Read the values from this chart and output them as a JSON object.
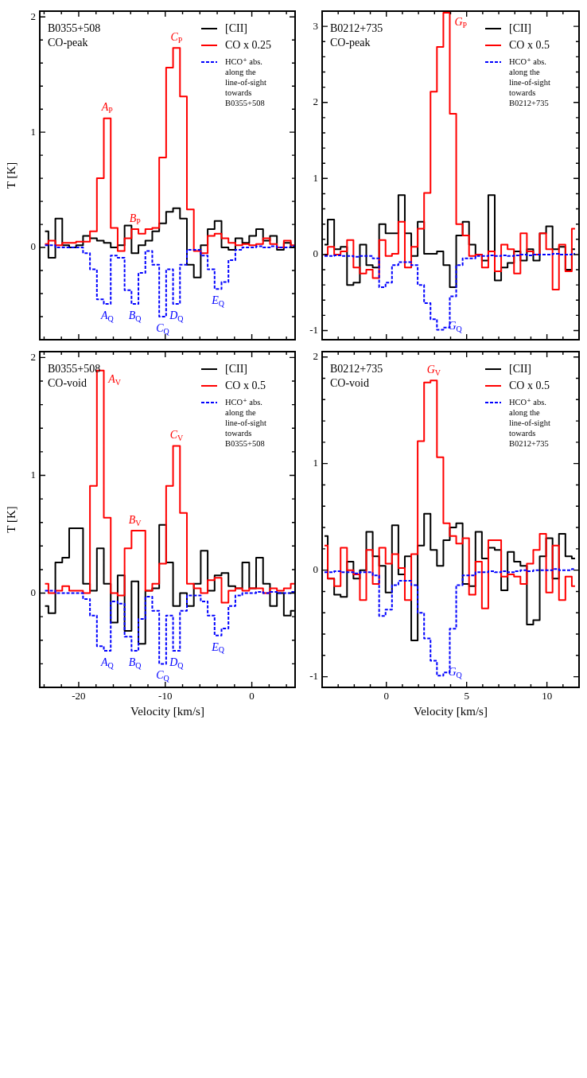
{
  "chart_data": [
    {
      "type": "step",
      "title": "B0355+508",
      "subtitle": "CO-peak",
      "ylabel": "T [K]",
      "tick_labels": "y",
      "legend": "top right",
      "marker": "none",
      "xlim": [
        -24.5,
        5
      ],
      "ylim": [
        -0.8,
        2.05
      ],
      "xticks": [
        {
          "value": -24,
          "label": null
        },
        {
          "value": -22,
          "label": null
        },
        -20,
        {
          "value": -18,
          "label": null
        },
        {
          "value": -16,
          "label": null
        },
        {
          "value": -14,
          "label": null
        },
        {
          "value": -12,
          "label": null
        },
        -10,
        {
          "value": -8,
          "label": null
        },
        {
          "value": -6,
          "label": null
        },
        {
          "value": -4,
          "label": null
        },
        {
          "value": -2,
          "label": null
        },
        0,
        {
          "value": 2,
          "label": null
        },
        {
          "value": 4,
          "label": null
        }
      ],
      "yticks": [
        {
          "value": -0.8,
          "label": null
        },
        {
          "value": -0.6,
          "label": null
        },
        {
          "value": -0.4,
          "label": null
        },
        {
          "value": -0.2,
          "label": null
        },
        0,
        {
          "value": 0.2,
          "label": null
        },
        {
          "value": 0.4,
          "label": null
        },
        {
          "value": 0.6,
          "label": null
        },
        {
          "value": 0.8,
          "label": null
        },
        1,
        {
          "value": 1.2,
          "label": null
        },
        {
          "value": 1.4,
          "label": null
        },
        {
          "value": 1.6,
          "label": null
        },
        {
          "value": 1.8,
          "label": null
        },
        2
      ],
      "x": [
        -23.9,
        -23.1,
        -22.3,
        -21.5,
        -20.7,
        -19.9,
        -19.1,
        -18.3,
        -17.5,
        -16.7,
        -15.9,
        -15.1,
        -14.3,
        -13.5,
        -12.7,
        -11.9,
        -11.1,
        -10.3,
        -9.5,
        -8.7,
        -7.9,
        -7.1,
        -6.3,
        -5.5,
        -4.7,
        -3.9,
        -3.1,
        -2.3,
        -1.5,
        -0.7,
        0.1,
        0.9,
        1.7,
        2.5,
        3.3,
        4.1,
        4.9
      ],
      "series": [
        {
          "name": "[CII]",
          "color": "#000000",
          "line_style": "solid",
          "values": [
            0.14,
            -0.09,
            0.25,
            0.02,
            0.0,
            0.02,
            0.1,
            0.08,
            0.06,
            0.04,
            0.0,
            0.02,
            0.19,
            -0.05,
            0.02,
            0.06,
            0.14,
            0.21,
            0.31,
            0.34,
            0.25,
            -0.15,
            -0.26,
            0.02,
            0.16,
            0.23,
            0.0,
            -0.02,
            0.08,
            0.04,
            0.1,
            0.16,
            0.06,
            0.1,
            -0.02,
            0.04,
            0.0
          ]
        },
        {
          "name": "CO x 0.25",
          "color": "#ff0000",
          "line_style": "solid",
          "values": [
            0.03,
            0.06,
            0.02,
            0.04,
            0.04,
            0.05,
            0.05,
            0.14,
            0.6,
            1.12,
            0.17,
            -0.03,
            0.08,
            0.16,
            0.12,
            0.16,
            0.17,
            0.78,
            1.56,
            1.73,
            1.31,
            0.33,
            -0.03,
            -0.05,
            0.1,
            0.12,
            0.08,
            0.04,
            0.02,
            0.03,
            0.02,
            0.03,
            0.08,
            0.03,
            0.0,
            0.06,
            0.02
          ]
        },
        {
          "name": "HCO⁺ abs. along the line-of-sight towards B0355+508",
          "color": "#0000ff",
          "line_style": "dashed",
          "values": [
            0.02,
            0.02,
            0.0,
            0.0,
            0.0,
            0.0,
            -0.05,
            -0.19,
            -0.45,
            -0.49,
            -0.07,
            -0.09,
            -0.37,
            -0.49,
            -0.22,
            -0.03,
            -0.15,
            -0.6,
            -0.19,
            -0.49,
            -0.15,
            -0.02,
            -0.02,
            -0.07,
            -0.19,
            -0.36,
            -0.3,
            -0.11,
            -0.02,
            0.0,
            0.0,
            0.01,
            0.0,
            0.01,
            0.0,
            0.0,
            0.01
          ]
        }
      ],
      "annotations": [
        {
          "text": "A$_{P}$",
          "x": -16.7,
          "y": 1.12
        },
        {
          "text": "B$_{P}$",
          "x": -13.5,
          "y": 0.16
        },
        {
          "text": "C$_{P}$",
          "x": -8.7,
          "y": 1.73
        },
        {
          "text": "A$_{Q}$",
          "x": -16.7,
          "y": -0.49
        },
        {
          "text": "B$_{Q}$",
          "x": -13.5,
          "y": -0.49
        },
        {
          "text": "C$_{Q}$",
          "x": -10.3,
          "y": -0.6
        },
        {
          "text": "D$_{Q}$",
          "x": -8.7,
          "y": -0.49
        },
        {
          "text": "E$_{Q}$",
          "x": -3.9,
          "y": -0.36
        }
      ]
    },
    {
      "type": "step",
      "title": "B0212+735",
      "subtitle": "CO-peak",
      "tick_labels": "y",
      "legend": "top right",
      "marker": "none",
      "xlim": [
        -4,
        12
      ],
      "ylim": [
        -1.12,
        3.2
      ],
      "xticks": [
        {
          "value": -4,
          "label": null
        },
        {
          "value": -3,
          "label": null
        },
        {
          "value": -2,
          "label": null
        },
        {
          "value": -1,
          "label": null
        },
        0,
        {
          "value": 1,
          "label": null
        },
        {
          "value": 2,
          "label": null
        },
        {
          "value": 3,
          "label": null
        },
        {
          "value": 4,
          "label": null
        },
        5,
        {
          "value": 6,
          "label": null
        },
        {
          "value": 7,
          "label": null
        },
        {
          "value": 8,
          "label": null
        },
        {
          "value": 9,
          "label": null
        },
        10,
        {
          "value": 11,
          "label": null
        },
        {
          "value": 12,
          "label": null
        }
      ],
      "yticks": [
        -1,
        {
          "value": -0.8,
          "label": null
        },
        {
          "value": -0.6,
          "label": null
        },
        {
          "value": -0.4,
          "label": null
        },
        {
          "value": -0.2,
          "label": null
        },
        0,
        {
          "value": 0.2,
          "label": null
        },
        {
          "value": 0.4,
          "label": null
        },
        {
          "value": 0.6,
          "label": null
        },
        {
          "value": 0.8,
          "label": null
        },
        1,
        {
          "value": 1.2,
          "label": null
        },
        {
          "value": 1.4,
          "label": null
        },
        {
          "value": 1.6,
          "label": null
        },
        {
          "value": 1.8,
          "label": null
        },
        2,
        {
          "value": 2.2,
          "label": null
        },
        {
          "value": 2.4,
          "label": null
        },
        {
          "value": 2.6,
          "label": null
        },
        {
          "value": 2.8,
          "label": null
        },
        3
      ],
      "x": [
        -3.85,
        -3.45,
        -3.05,
        -2.65,
        -2.25,
        -1.85,
        -1.45,
        -1.05,
        -0.65,
        -0.25,
        0.15,
        0.55,
        0.95,
        1.35,
        1.75,
        2.15,
        2.55,
        2.95,
        3.35,
        3.75,
        4.15,
        4.55,
        4.95,
        5.35,
        5.75,
        6.15,
        6.55,
        6.95,
        7.35,
        7.75,
        8.15,
        8.55,
        8.95,
        9.35,
        9.75,
        10.15,
        10.55,
        10.95,
        11.35,
        11.75
      ],
      "series": [
        {
          "name": "[CII]",
          "color": "#000000",
          "line_style": "solid",
          "values": [
            0.13,
            0.46,
            0.07,
            0.1,
            -0.4,
            -0.37,
            0.13,
            -0.14,
            -0.17,
            0.4,
            0.28,
            0.28,
            0.78,
            0.28,
            -0.02,
            0.43,
            0.01,
            0.01,
            0.04,
            -0.14,
            -0.43,
            0.25,
            0.43,
            0.13,
            0.0,
            -0.08,
            0.78,
            -0.34,
            -0.17,
            -0.11,
            0.04,
            -0.08,
            0.07,
            -0.08,
            0.28,
            0.37,
            0.07,
            0.1,
            -0.2,
            0.07
          ]
        },
        {
          "name": "CO x 0.5",
          "color": "#ff0000",
          "line_style": "solid",
          "values": [
            0.0,
            0.1,
            0.0,
            0.04,
            0.19,
            -0.17,
            -0.25,
            -0.2,
            -0.31,
            0.19,
            -0.02,
            0.01,
            0.43,
            -0.17,
            0.1,
            0.34,
            0.81,
            2.14,
            2.73,
            3.18,
            1.85,
            0.4,
            0.25,
            -0.02,
            0.0,
            -0.17,
            0.04,
            -0.22,
            0.13,
            0.07,
            -0.25,
            0.28,
            0.04,
            0.0,
            0.28,
            0.07,
            -0.46,
            0.13,
            -0.22,
            0.34
          ]
        },
        {
          "name": "HCO⁺ abs. along the line-of-sight towards B0212+735",
          "color": "#0000ff",
          "line_style": "dashed",
          "values": [
            -0.02,
            -0.02,
            -0.01,
            -0.02,
            -0.02,
            -0.03,
            -0.02,
            -0.02,
            -0.05,
            -0.43,
            -0.37,
            -0.14,
            -0.1,
            -0.1,
            -0.14,
            -0.4,
            -0.64,
            -0.85,
            -0.99,
            -0.96,
            -0.55,
            -0.14,
            -0.05,
            -0.05,
            -0.02,
            -0.02,
            -0.01,
            -0.02,
            -0.01,
            -0.02,
            -0.01,
            0.0,
            -0.01,
            0.0,
            0.0,
            0.0,
            0.01,
            0.0,
            0.0,
            0.01
          ]
        }
      ],
      "annotations": [
        {
          "text": "G$_{P}$",
          "x": 3.75,
          "y": 3.18
        },
        {
          "text": "G$_{Q}$",
          "x": 3.35,
          "y": -0.99
        }
      ]
    },
    {
      "type": "step",
      "title": "B0355+508",
      "subtitle": "CO-void",
      "xlabel": "Velocity [km/s]",
      "ylabel": "T [K]",
      "legend": "top right",
      "marker": "none",
      "xlim": [
        -24.5,
        5
      ],
      "ylim": [
        -0.8,
        2.05
      ],
      "xticks": [
        {
          "value": -24,
          "label": null
        },
        {
          "value": -22,
          "label": null
        },
        -20,
        {
          "value": -18,
          "label": null
        },
        {
          "value": -16,
          "label": null
        },
        {
          "value": -14,
          "label": null
        },
        {
          "value": -12,
          "label": null
        },
        -10,
        {
          "value": -8,
          "label": null
        },
        {
          "value": -6,
          "label": null
        },
        {
          "value": -4,
          "label": null
        },
        {
          "value": -2,
          "label": null
        },
        0,
        {
          "value": 2,
          "label": null
        },
        {
          "value": 4,
          "label": null
        }
      ],
      "yticks": [
        {
          "value": -0.8,
          "label": null
        },
        {
          "value": -0.6,
          "label": null
        },
        {
          "value": -0.4,
          "label": null
        },
        {
          "value": -0.2,
          "label": null
        },
        0,
        {
          "value": 0.2,
          "label": null
        },
        {
          "value": 0.4,
          "label": null
        },
        {
          "value": 0.6,
          "label": null
        },
        {
          "value": 0.8,
          "label": null
        },
        1,
        {
          "value": 1.2,
          "label": null
        },
        {
          "value": 1.4,
          "label": null
        },
        {
          "value": 1.6,
          "label": null
        },
        {
          "value": 1.8,
          "label": null
        },
        2
      ],
      "x": [
        -23.9,
        -23.1,
        -22.3,
        -21.5,
        -20.7,
        -19.9,
        -19.1,
        -18.3,
        -17.5,
        -16.7,
        -15.9,
        -15.1,
        -14.3,
        -13.5,
        -12.7,
        -11.9,
        -11.1,
        -10.3,
        -9.5,
        -8.7,
        -7.9,
        -7.1,
        -6.3,
        -5.5,
        -4.7,
        -3.9,
        -3.1,
        -2.3,
        -1.5,
        -0.7,
        0.1,
        0.9,
        1.7,
        2.5,
        3.3,
        4.1,
        4.9
      ],
      "series": [
        {
          "name": "[CII]",
          "color": "#000000",
          "line_style": "solid",
          "values": [
            -0.11,
            -0.17,
            0.26,
            0.3,
            0.55,
            0.55,
            0.08,
            0.02,
            0.38,
            0.08,
            -0.25,
            0.15,
            -0.32,
            0.1,
            -0.43,
            0.02,
            0.04,
            0.58,
            0.26,
            -0.11,
            0.0,
            -0.11,
            0.08,
            0.36,
            0.02,
            0.15,
            0.17,
            0.06,
            0.04,
            0.26,
            0.04,
            0.3,
            0.08,
            -0.11,
            0.0,
            -0.19,
            -0.15
          ]
        },
        {
          "name": "CO x 0.5",
          "color": "#ff0000",
          "line_style": "solid",
          "values": [
            0.08,
            0.0,
            0.02,
            0.06,
            0.02,
            0.02,
            0.0,
            0.91,
            1.89,
            0.64,
            0.0,
            -0.02,
            0.38,
            0.53,
            0.53,
            0.02,
            0.08,
            0.25,
            0.91,
            1.25,
            0.68,
            0.08,
            0.04,
            0.0,
            0.11,
            0.13,
            -0.08,
            0.02,
            0.04,
            0.02,
            0.04,
            0.04,
            0.0,
            0.04,
            0.02,
            0.04,
            0.08
          ]
        },
        {
          "name": "HCO⁺ abs. along the line-of-sight towards B0355+508",
          "color": "#0000ff",
          "line_style": "dashed",
          "values": [
            0.02,
            0.02,
            0.0,
            0.0,
            0.0,
            0.0,
            -0.05,
            -0.19,
            -0.45,
            -0.49,
            -0.07,
            -0.09,
            -0.37,
            -0.49,
            -0.22,
            -0.03,
            -0.15,
            -0.6,
            -0.19,
            -0.49,
            -0.15,
            -0.02,
            -0.02,
            -0.07,
            -0.19,
            -0.36,
            -0.3,
            -0.11,
            -0.02,
            0.0,
            0.0,
            0.01,
            0.0,
            0.01,
            0.0,
            0.0,
            0.01
          ]
        }
      ],
      "annotations": [
        {
          "text": "A$_{V}$",
          "x": -17.5,
          "y": 1.89
        },
        {
          "text": "B$_{V}$",
          "x": -13.5,
          "y": 0.53
        },
        {
          "text": "C$_{V}$",
          "x": -8.7,
          "y": 1.25
        },
        {
          "text": "A$_{Q}$",
          "x": -16.7,
          "y": -0.49
        },
        {
          "text": "B$_{Q}$",
          "x": -13.5,
          "y": -0.49
        },
        {
          "text": "C$_{Q}$",
          "x": -10.3,
          "y": -0.6
        },
        {
          "text": "D$_{Q}$",
          "x": -8.7,
          "y": -0.49
        },
        {
          "text": "E$_{Q}$",
          "x": -3.9,
          "y": -0.36
        }
      ]
    },
    {
      "type": "step",
      "title": "B0212+735",
      "subtitle": "CO-void",
      "xlabel": "Velocity [km/s]",
      "legend": "top right",
      "marker": "none",
      "xlim": [
        -4,
        12
      ],
      "ylim": [
        -1.1,
        2.05
      ],
      "xticks": [
        {
          "value": -4,
          "label": null
        },
        {
          "value": -3,
          "label": null
        },
        {
          "value": -2,
          "label": null
        },
        {
          "value": -1,
          "label": null
        },
        0,
        {
          "value": 1,
          "label": null
        },
        {
          "value": 2,
          "label": null
        },
        {
          "value": 3,
          "label": null
        },
        {
          "value": 4,
          "label": null
        },
        5,
        {
          "value": 6,
          "label": null
        },
        {
          "value": 7,
          "label": null
        },
        {
          "value": 8,
          "label": null
        },
        {
          "value": 9,
          "label": null
        },
        10,
        {
          "value": 11,
          "label": null
        },
        {
          "value": 12,
          "label": null
        }
      ],
      "yticks": [
        -1,
        {
          "value": -0.8,
          "label": null
        },
        {
          "value": -0.6,
          "label": null
        },
        {
          "value": -0.4,
          "label": null
        },
        {
          "value": -0.2,
          "label": null
        },
        0,
        {
          "value": 0.2,
          "label": null
        },
        {
          "value": 0.4,
          "label": null
        },
        {
          "value": 0.6,
          "label": null
        },
        {
          "value": 0.8,
          "label": null
        },
        1,
        {
          "value": 1.2,
          "label": null
        },
        {
          "value": 1.4,
          "label": null
        },
        {
          "value": 1.6,
          "label": null
        },
        {
          "value": 1.8,
          "label": null
        },
        2
      ],
      "x": [
        -3.85,
        -3.45,
        -3.05,
        -2.65,
        -2.25,
        -1.85,
        -1.45,
        -1.05,
        -0.65,
        -0.25,
        0.15,
        0.55,
        0.95,
        1.35,
        1.75,
        2.15,
        2.55,
        2.95,
        3.35,
        3.75,
        4.15,
        4.55,
        4.95,
        5.35,
        5.75,
        6.15,
        6.55,
        6.95,
        7.35,
        7.75,
        8.15,
        8.55,
        8.95,
        9.35,
        9.75,
        10.15,
        10.55,
        10.95,
        11.35,
        11.75
      ],
      "series": [
        {
          "name": "[CII]",
          "color": "#000000",
          "line_style": "solid",
          "values": [
            0.32,
            -0.08,
            -0.23,
            -0.25,
            0.08,
            -0.08,
            0.0,
            0.36,
            0.13,
            0.04,
            -0.21,
            0.42,
            -0.04,
            0.13,
            -0.66,
            0.23,
            0.53,
            0.19,
            0.04,
            0.28,
            0.4,
            0.44,
            -0.13,
            -0.15,
            0.36,
            0.11,
            0.21,
            0.19,
            -0.19,
            0.17,
            0.08,
            0.04,
            -0.51,
            -0.47,
            0.13,
            0.3,
            -0.08,
            0.34,
            0.13,
            0.11
          ]
        },
        {
          "name": "CO x 0.5",
          "color": "#ff0000",
          "line_style": "solid",
          "values": [
            0.23,
            -0.08,
            -0.15,
            0.21,
            0.0,
            -0.04,
            -0.28,
            0.19,
            -0.13,
            0.21,
            0.06,
            0.15,
            0.02,
            -0.28,
            0.15,
            1.21,
            1.76,
            1.78,
            1.06,
            0.44,
            0.32,
            0.25,
            0.3,
            -0.23,
            0.08,
            -0.36,
            0.28,
            0.28,
            -0.06,
            -0.04,
            -0.06,
            -0.13,
            0.06,
            0.19,
            0.34,
            -0.21,
            0.23,
            -0.28,
            -0.06,
            -0.15
          ]
        },
        {
          "name": "HCO⁺ abs. along the line-of-sight towards B0212+735",
          "color": "#0000ff",
          "line_style": "dashed",
          "values": [
            -0.02,
            -0.02,
            -0.01,
            -0.02,
            -0.02,
            -0.03,
            -0.02,
            -0.02,
            -0.05,
            -0.43,
            -0.37,
            -0.14,
            -0.1,
            -0.1,
            -0.14,
            -0.4,
            -0.64,
            -0.85,
            -0.99,
            -0.96,
            -0.55,
            -0.14,
            -0.05,
            -0.05,
            -0.02,
            -0.02,
            -0.01,
            -0.02,
            -0.01,
            -0.02,
            -0.01,
            0.0,
            -0.01,
            0.0,
            0.0,
            0.0,
            0.01,
            0.0,
            0.0,
            0.01
          ]
        }
      ],
      "annotations": [
        {
          "text": "G$_{V}$",
          "x": 2.95,
          "y": 1.78
        },
        {
          "text": "G$_{Q}$",
          "x": 3.35,
          "y": -0.99
        }
      ]
    }
  ]
}
